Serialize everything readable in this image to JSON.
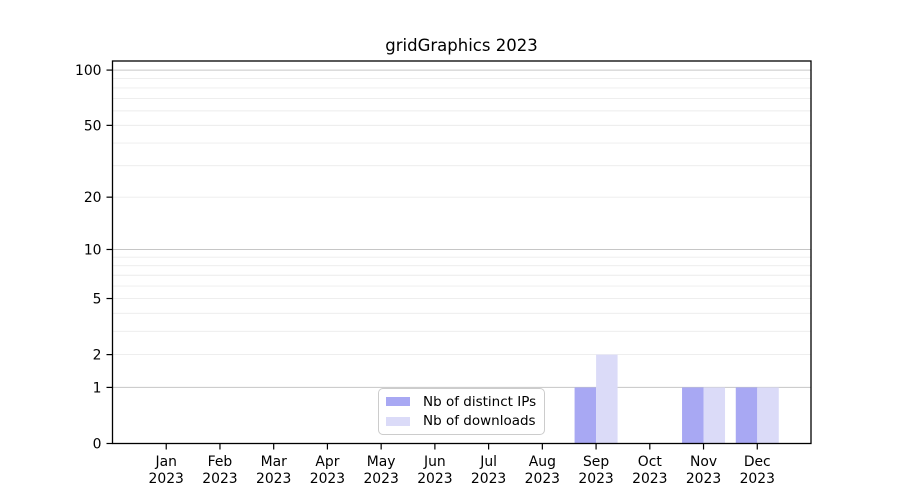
{
  "chart_data": {
    "type": "bar",
    "title": "gridGraphics 2023",
    "y_scale": "log1p",
    "ylim": [
      0,
      112
    ],
    "y_ticks": [
      0,
      1,
      2,
      5,
      10,
      20,
      50,
      100
    ],
    "grid": {
      "major": [
        1,
        10,
        100
      ],
      "minor": [
        2,
        3,
        4,
        5,
        6,
        7,
        8,
        9,
        20,
        30,
        40,
        50,
        60,
        70,
        80,
        90
      ]
    },
    "categories": [
      {
        "month": "Jan",
        "year": "2023"
      },
      {
        "month": "Feb",
        "year": "2023"
      },
      {
        "month": "Mar",
        "year": "2023"
      },
      {
        "month": "Apr",
        "year": "2023"
      },
      {
        "month": "May",
        "year": "2023"
      },
      {
        "month": "Jun",
        "year": "2023"
      },
      {
        "month": "Jul",
        "year": "2023"
      },
      {
        "month": "Aug",
        "year": "2023"
      },
      {
        "month": "Sep",
        "year": "2023"
      },
      {
        "month": "Oct",
        "year": "2023"
      },
      {
        "month": "Nov",
        "year": "2023"
      },
      {
        "month": "Dec",
        "year": "2023"
      }
    ],
    "series": [
      {
        "name": "Nb of distinct IPs",
        "color": "#a8a8f3",
        "values": [
          0,
          0,
          0,
          0,
          0,
          0,
          0,
          0,
          1,
          0,
          1,
          1
        ]
      },
      {
        "name": "Nb of downloads",
        "color": "#dbdbf8",
        "values": [
          0,
          0,
          0,
          0,
          0,
          0,
          0,
          0,
          2,
          0,
          1,
          1
        ]
      }
    ],
    "legend_position": "inside-bottom-center-left",
    "colors": {
      "major_gridline": "#c6c6c6",
      "minor_gridline": "#ececec",
      "axis": "#000000"
    }
  }
}
